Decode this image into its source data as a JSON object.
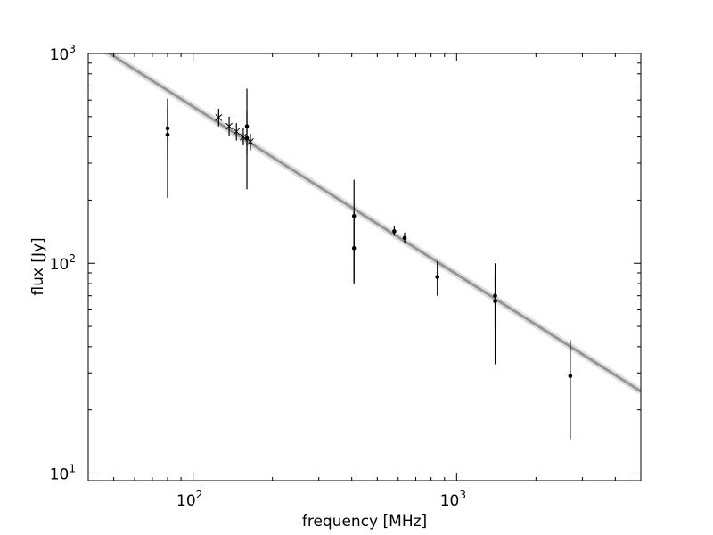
{
  "chart_data": {
    "type": "scatter",
    "xlabel": "frequency [MHz]",
    "ylabel": "flux [Jy]",
    "xscale": "log",
    "yscale": "log",
    "xlim": [
      40,
      5000
    ],
    "ylim": [
      9.2,
      1000
    ],
    "grid": false,
    "x_major_ticks": [
      {
        "value": 100,
        "base": "10",
        "exp": "2"
      },
      {
        "value": 1000,
        "base": "10",
        "exp": "3"
      }
    ],
    "y_major_ticks": [
      {
        "value": 10,
        "base": "10",
        "exp": "1"
      },
      {
        "value": 100,
        "base": "10",
        "exp": "2"
      },
      {
        "value": 1000,
        "base": "10",
        "exp": "3"
      }
    ],
    "fit_line": {
      "points": [
        [
          40,
          1160
        ],
        [
          5000,
          24.5
        ]
      ],
      "color": "#888888"
    },
    "points": [
      {
        "x": 80,
        "y": 440,
        "ylow": 205,
        "yhigh": 610,
        "marker": "dot"
      },
      {
        "x": 80,
        "y": 410,
        "ylow": 310,
        "yhigh": 560,
        "marker": "dot"
      },
      {
        "x": 160,
        "y": 450,
        "ylow": 225,
        "yhigh": 680,
        "marker": "dot"
      },
      {
        "x": 160,
        "y": 395,
        "ylow": 330,
        "yhigh": 530,
        "marker": "dot"
      },
      {
        "x": 408,
        "y": 168,
        "ylow": 80,
        "yhigh": 250,
        "marker": "dot"
      },
      {
        "x": 408,
        "y": 118,
        "ylow": 82,
        "yhigh": 175,
        "marker": "dot"
      },
      {
        "x": 580,
        "y": 142,
        "ylow": 135,
        "yhigh": 150,
        "marker": "dot"
      },
      {
        "x": 635,
        "y": 132,
        "ylow": 124,
        "yhigh": 140,
        "marker": "dot"
      },
      {
        "x": 845,
        "y": 86,
        "ylow": 70,
        "yhigh": 102,
        "marker": "dot"
      },
      {
        "x": 1400,
        "y": 70,
        "ylow": 33,
        "yhigh": 100,
        "marker": "dot"
      },
      {
        "x": 1400,
        "y": 66,
        "ylow": 50,
        "yhigh": 88,
        "marker": "dot"
      },
      {
        "x": 2700,
        "y": 29,
        "ylow": 14.5,
        "yhigh": 43,
        "marker": "dot"
      },
      {
        "x": 125,
        "y": 495,
        "ylow": 450,
        "yhigh": 545,
        "marker": "x"
      },
      {
        "x": 137,
        "y": 450,
        "ylow": 405,
        "yhigh": 500,
        "marker": "x"
      },
      {
        "x": 146,
        "y": 425,
        "ylow": 385,
        "yhigh": 465,
        "marker": "x"
      },
      {
        "x": 155,
        "y": 400,
        "ylow": 365,
        "yhigh": 440,
        "marker": "x"
      },
      {
        "x": 165,
        "y": 380,
        "ylow": 345,
        "yhigh": 415,
        "marker": "x"
      }
    ]
  }
}
